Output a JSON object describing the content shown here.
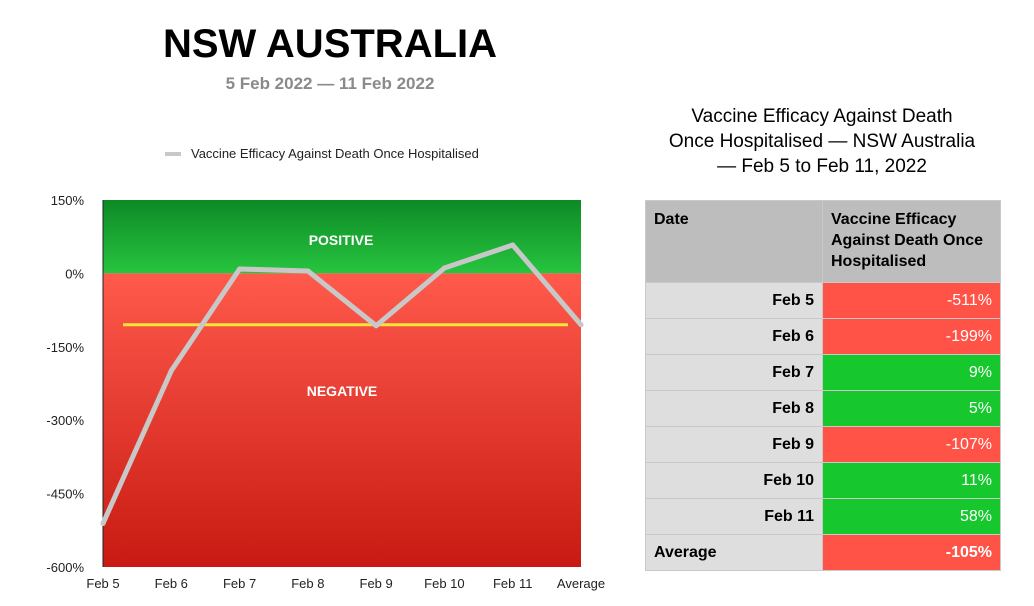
{
  "header": {
    "title": "NSW AUSTRALIA",
    "subtitle": "5 Feb 2022 — 11 Feb 2022"
  },
  "colors": {
    "positive_zone": "#0f9a2c",
    "negative_zone": "#f0463a",
    "line": "#c8c8c8",
    "average_line": "#f2e53a",
    "positive_cell": "#17c72e",
    "negative_cell": "#ff5348"
  },
  "chart_data": {
    "type": "line",
    "categories": [
      "Feb 5",
      "Feb 6",
      "Feb 7",
      "Feb 8",
      "Feb 9",
      "Feb 10",
      "Feb 11",
      "Average"
    ],
    "series": [
      {
        "name": "Vaccine Efficacy Against Death Once Hospitalised",
        "values": [
          -511,
          -199,
          9,
          5,
          -107,
          11,
          58,
          -105
        ]
      }
    ],
    "average_line": -105,
    "ylim": [
      -600,
      150
    ],
    "yticks": [
      150,
      0,
      -150,
      -300,
      -450,
      -600
    ],
    "ytick_labels": [
      "150%",
      "0%",
      "-150%",
      "-300%",
      "-450%",
      "-600%"
    ],
    "zone_labels": {
      "positive": "POSITIVE",
      "negative": "NEGATIVE"
    },
    "legend": "top",
    "grid": false,
    "xlabel": "",
    "ylabel": "",
    "title": ""
  },
  "table": {
    "title_lines": [
      "Vaccine Efficacy Against Death",
      "Once Hospitalised — NSW Australia",
      "— Feb 5 to Feb 11, 2022"
    ],
    "headers": [
      "Date",
      "Vaccine Efficacy Against Death Once Hospitalised"
    ],
    "rows": [
      {
        "date": "Feb 5",
        "value": "-511%",
        "sign": "neg"
      },
      {
        "date": "Feb 6",
        "value": "-199%",
        "sign": "neg"
      },
      {
        "date": "Feb 7",
        "value": "9%",
        "sign": "pos"
      },
      {
        "date": "Feb 8",
        "value": "5%",
        "sign": "pos"
      },
      {
        "date": "Feb 9",
        "value": "-107%",
        "sign": "neg"
      },
      {
        "date": "Feb 10",
        "value": "11%",
        "sign": "pos"
      },
      {
        "date": "Feb 11",
        "value": "58%",
        "sign": "pos"
      }
    ],
    "average": {
      "label": "Average",
      "value": "-105%",
      "sign": "neg"
    }
  }
}
